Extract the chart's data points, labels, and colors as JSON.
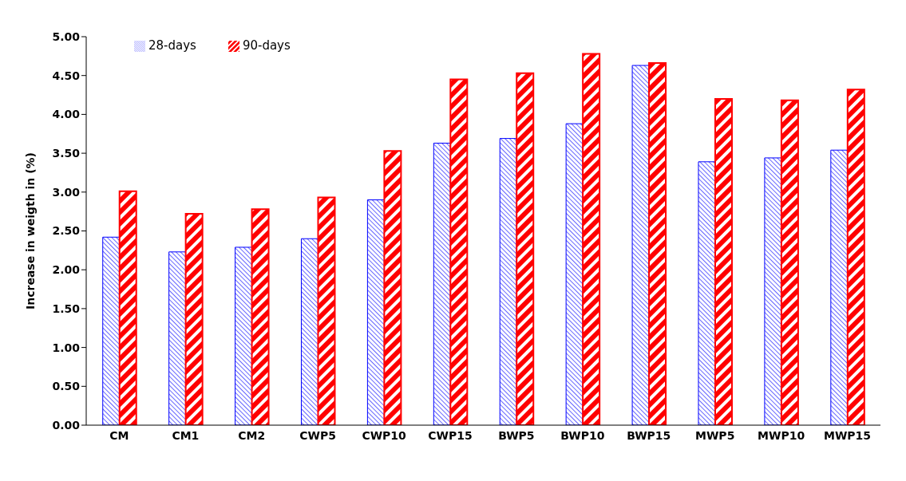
{
  "chart_data": {
    "type": "bar",
    "ylabel": "Increase in weigth in (%)",
    "categories": [
      "CM",
      "CM1",
      "CM2",
      "CWP5",
      "CWP10",
      "CWP15",
      "BWP5",
      "BWP10",
      "BWP15",
      "MWP5",
      "MWP10",
      "MWP15"
    ],
    "series": [
      {
        "name": "28-days",
        "color": "#0000ff",
        "values": [
          2.42,
          2.23,
          2.29,
          2.4,
          2.9,
          3.63,
          3.69,
          3.88,
          4.63,
          3.39,
          3.44,
          3.54
        ]
      },
      {
        "name": "90-days",
        "color": "#ff0000",
        "values": [
          3.01,
          2.72,
          2.78,
          2.93,
          3.53,
          4.45,
          4.53,
          4.78,
          4.66,
          4.2,
          4.18,
          4.32
        ]
      }
    ],
    "ylim": [
      0,
      5
    ],
    "yticks": [
      {
        "value": 0,
        "label": "0.00"
      },
      {
        "value": 0.5,
        "label": "0.50"
      },
      {
        "value": 1,
        "label": "1.00"
      },
      {
        "value": 1.5,
        "label": "1.50"
      },
      {
        "value": 2,
        "label": "2.00"
      },
      {
        "value": 2.5,
        "label": "2.50"
      },
      {
        "value": 3,
        "label": "3.00"
      },
      {
        "value": 3.5,
        "label": "3.50"
      },
      {
        "value": 4,
        "label": "4.00"
      },
      {
        "value": 4.5,
        "label": "4.50"
      },
      {
        "value": 5,
        "label": "5.00"
      }
    ],
    "grid": false,
    "legend": "top left"
  }
}
